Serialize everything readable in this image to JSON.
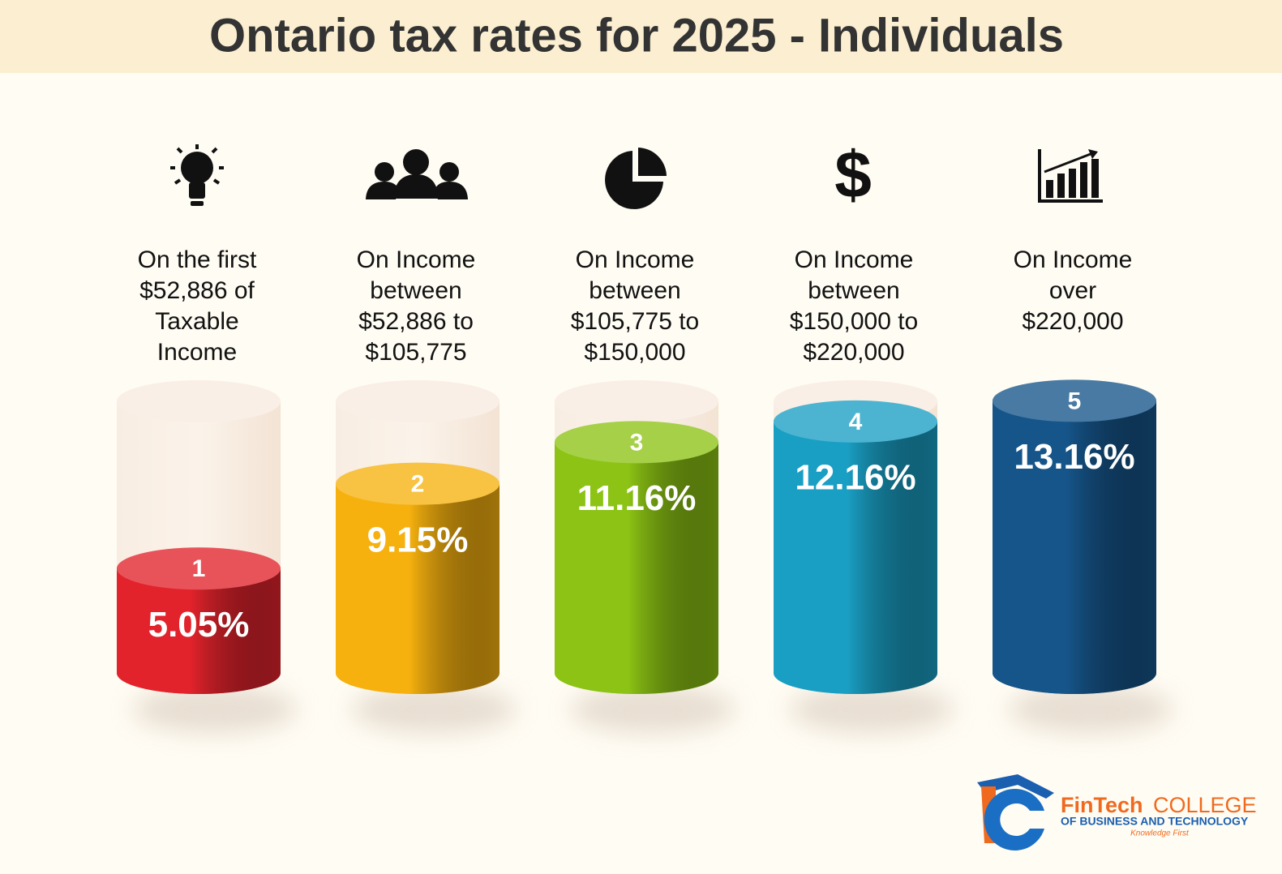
{
  "chart_data": {
    "type": "bar",
    "title": "Ontario tax rates for 2025 - Individuals",
    "categories": [
      [
        "On the first",
        "$52,886 of",
        "Taxable",
        "Income"
      ],
      [
        "On Income",
        "between",
        "$52,886 to",
        "$105,775"
      ],
      [
        "On Income",
        "between",
        "$105,775 to",
        "$150,000"
      ],
      [
        "On Income",
        "between",
        "$150,000 to",
        "$220,000"
      ],
      [
        "On Income",
        "over",
        "$220,000"
      ]
    ],
    "ranks": [
      "1",
      "2",
      "3",
      "4",
      "5"
    ],
    "values": [
      5.05,
      9.15,
      11.16,
      12.16,
      13.16
    ],
    "value_labels": [
      "5.05%",
      "9.15%",
      "11.16%",
      "12.16%",
      "13.16%"
    ],
    "colors": [
      "#e2232c",
      "#f6b10f",
      "#8cc314",
      "#1a9fc4",
      "#16558a"
    ]
  },
  "logo": {
    "name": "FinTech",
    "college": "COLLEGE",
    "subtitle": "OF BUSINESS AND TECHNOLOGY",
    "tagline": "Knowledge First"
  }
}
